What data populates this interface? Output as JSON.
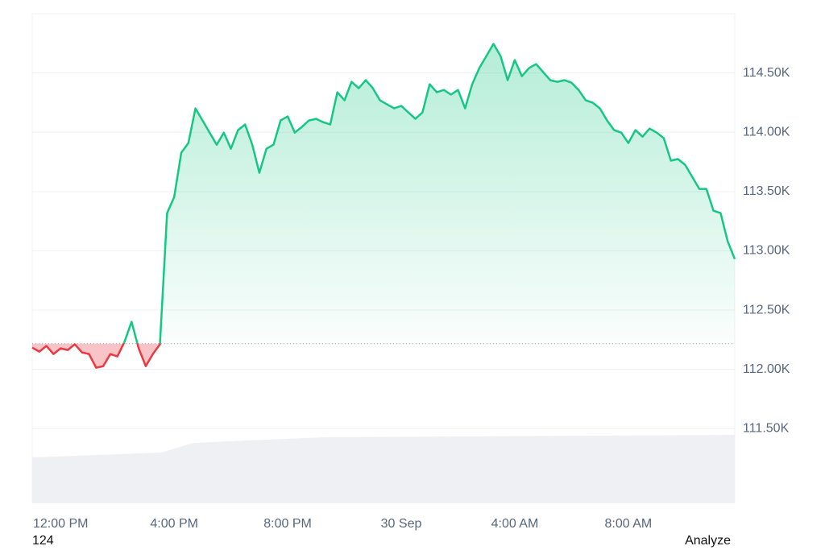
{
  "chart_data": {
    "type": "line",
    "categories": [
      null,
      null,
      null,
      null,
      "12:00 PM",
      null,
      null,
      null,
      null,
      null,
      null,
      null,
      null,
      null,
      null,
      null,
      null,
      null,
      null,
      null,
      "4:00 PM",
      null,
      null,
      null,
      null,
      null,
      null,
      null,
      null,
      null,
      null,
      null,
      null,
      null,
      null,
      null,
      "8:00 PM",
      null,
      null,
      null,
      null,
      null,
      null,
      null,
      null,
      null,
      null,
      null,
      null,
      null,
      null,
      null,
      "30 Sep",
      null,
      null,
      null,
      null,
      null,
      null,
      null,
      null,
      null,
      null,
      null,
      null,
      null,
      null,
      null,
      "4:00 AM",
      null,
      null,
      null,
      null,
      null,
      null,
      null,
      null,
      null,
      null,
      null,
      null,
      null,
      null,
      null,
      "8:00 AM",
      null,
      null,
      null,
      null,
      null,
      null,
      null,
      null,
      null,
      null,
      null,
      null,
      null,
      null,
      null
    ],
    "series": [
      {
        "color": "#16c784",
        "down_color": "#ea3943",
        "values": [
          112183,
          112149,
          112197,
          112129,
          112177,
          112163,
          112211,
          112143,
          112129,
          112014,
          112027,
          112129,
          112109,
          112231,
          112401,
          112177,
          112027,
          112129,
          112211,
          113318,
          113454,
          113827,
          113909,
          114201,
          114099,
          113997,
          113895,
          113997,
          113861,
          114018,
          114065,
          113895,
          113658,
          113861,
          113895,
          114099,
          114133,
          113997,
          114045,
          114099,
          114113,
          114085,
          114065,
          114337,
          114269,
          114425,
          114371,
          114439,
          114371,
          114269,
          114235,
          114201,
          114222,
          114167,
          114113,
          114167,
          114405,
          114337,
          114357,
          114317,
          114357,
          114201,
          114405,
          114541,
          114643,
          114745,
          114643,
          114439,
          114609,
          114473,
          114541,
          114575,
          114507,
          114439,
          114425,
          114439,
          114418,
          114357,
          114269,
          114249,
          114201,
          114099,
          114018,
          113997,
          113909,
          114018,
          113963,
          114031,
          113997,
          113950,
          113760,
          113774,
          113726,
          113624,
          113522,
          113522,
          113338,
          113318,
          113080,
          112931
        ]
      }
    ],
    "baseline": 112217,
    "ylim": [
      110870,
      115000
    ],
    "yticks": [
      {
        "value": 111500,
        "label": "111.50K"
      },
      {
        "value": 112000,
        "label": "112.00K"
      },
      {
        "value": 112500,
        "label": "112.50K"
      },
      {
        "value": 113000,
        "label": "113.00K"
      },
      {
        "value": 113500,
        "label": "113.50K"
      },
      {
        "value": 114000,
        "label": "114.00K"
      },
      {
        "value": 114500,
        "label": "114.50K"
      }
    ],
    "grid": true
  },
  "footer": {
    "count": "124",
    "action": "Analyze"
  }
}
